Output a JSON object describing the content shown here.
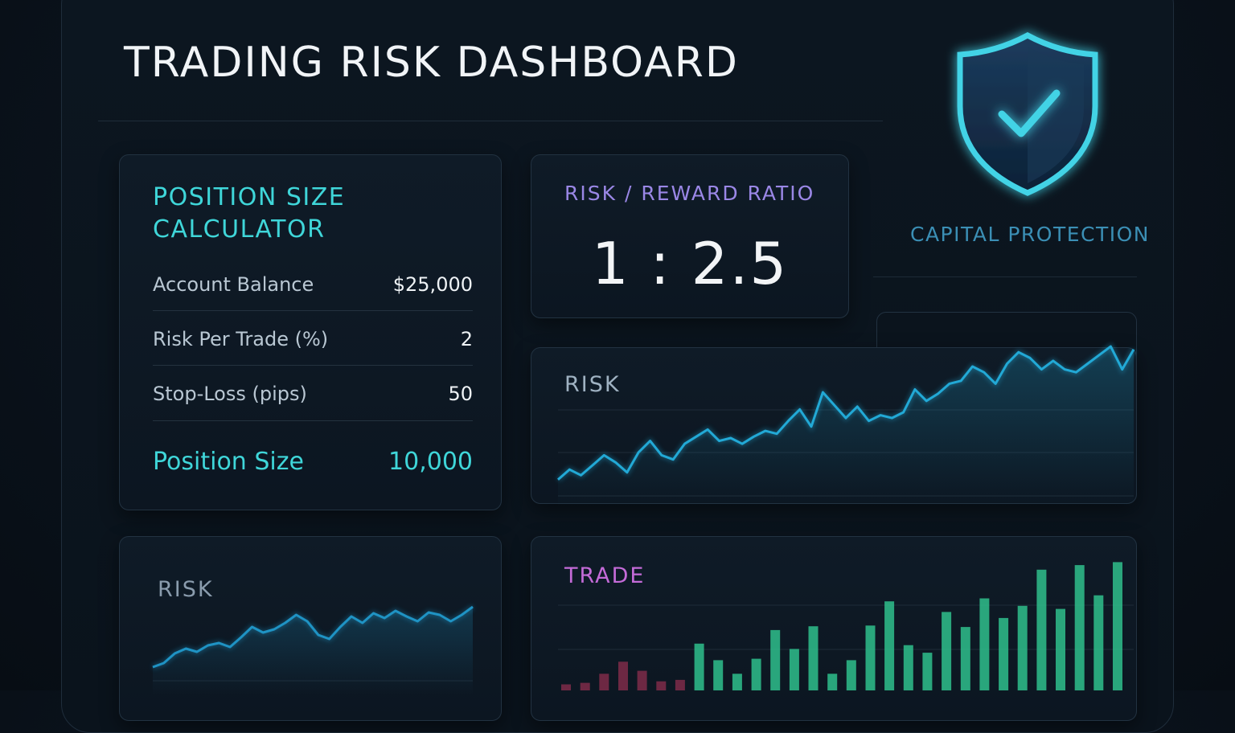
{
  "header": {
    "title": "TRADING RISK DASHBOARD"
  },
  "calculator": {
    "title": "POSITION SIZE CALCULATOR",
    "rows": [
      {
        "label": "Account Balance",
        "value": "$25,000"
      },
      {
        "label": "Risk Per Trade (%)",
        "value": "2"
      },
      {
        "label": "Stop-Loss (pips)",
        "value": "50"
      }
    ],
    "result": {
      "label": "Position Size",
      "value": "10,000"
    }
  },
  "risk_reward": {
    "title": "RISK / REWARD RATIO",
    "value": "1 : 2.5"
  },
  "capital_protection": {
    "label": "CAPITAL PROTECTION",
    "icon": "shield-check-icon"
  },
  "colors": {
    "accent_teal": "#3fd6d9",
    "accent_purple": "#9a87e6",
    "trade_label": "#c46bd8",
    "line_blue": "#22a9d6",
    "bar_green": "#2fbf8c",
    "bar_red": "#8e2f4f"
  },
  "chart_data": [
    {
      "type": "line",
      "title": "RISK",
      "x": [
        0,
        1,
        2,
        3,
        4,
        5,
        6,
        7,
        8,
        9,
        10,
        11,
        12,
        13,
        14,
        15,
        16,
        17,
        18,
        19,
        20,
        21,
        22,
        23,
        24,
        25,
        26,
        27,
        28,
        29,
        30,
        31,
        32,
        33,
        34,
        35,
        36,
        37,
        38,
        39,
        40,
        41,
        42,
        43,
        44,
        45,
        46,
        47,
        48,
        49,
        50
      ],
      "values": [
        3,
        10,
        6,
        13,
        20,
        15,
        8,
        22,
        30,
        20,
        17,
        28,
        33,
        38,
        30,
        32,
        28,
        33,
        37,
        35,
        44,
        52,
        40,
        64,
        55,
        46,
        54,
        44,
        48,
        46,
        50,
        66,
        58,
        63,
        70,
        72,
        82,
        78,
        70,
        84,
        92,
        88,
        80,
        86,
        80,
        78,
        84,
        90,
        96,
        80,
        94
      ],
      "ylim": [
        0,
        100
      ]
    },
    {
      "type": "line",
      "title": "RISK",
      "x": [
        0,
        1,
        2,
        3,
        4,
        5,
        6,
        7,
        8,
        9,
        10,
        11,
        12,
        13,
        14,
        15,
        16,
        17,
        18,
        19,
        20,
        21,
        22,
        23,
        24,
        25,
        26,
        27,
        28,
        29
      ],
      "values": [
        5,
        10,
        22,
        28,
        24,
        32,
        35,
        30,
        42,
        55,
        48,
        52,
        60,
        70,
        62,
        45,
        40,
        55,
        68,
        60,
        72,
        66,
        75,
        68,
        62,
        73,
        70,
        62,
        70,
        80
      ],
      "ylim": [
        0,
        100
      ]
    },
    {
      "type": "bar",
      "title": "TRADE",
      "categories": [
        "1",
        "2",
        "3",
        "4",
        "5",
        "6",
        "7",
        "8",
        "9",
        "10",
        "11",
        "12",
        "13",
        "14",
        "15",
        "16",
        "17",
        "18",
        "19",
        "20",
        "21",
        "22",
        "23",
        "24",
        "25",
        "26",
        "27",
        "28",
        "29",
        "30"
      ],
      "values": [
        -8,
        -10,
        -22,
        -38,
        -26,
        -12,
        -14,
        62,
        40,
        22,
        42,
        80,
        55,
        85,
        22,
        40,
        86,
        118,
        60,
        50,
        104,
        84,
        122,
        96,
        112,
        160,
        108,
        166,
        126,
        170
      ],
      "ylim": [
        -40,
        180
      ]
    }
  ]
}
